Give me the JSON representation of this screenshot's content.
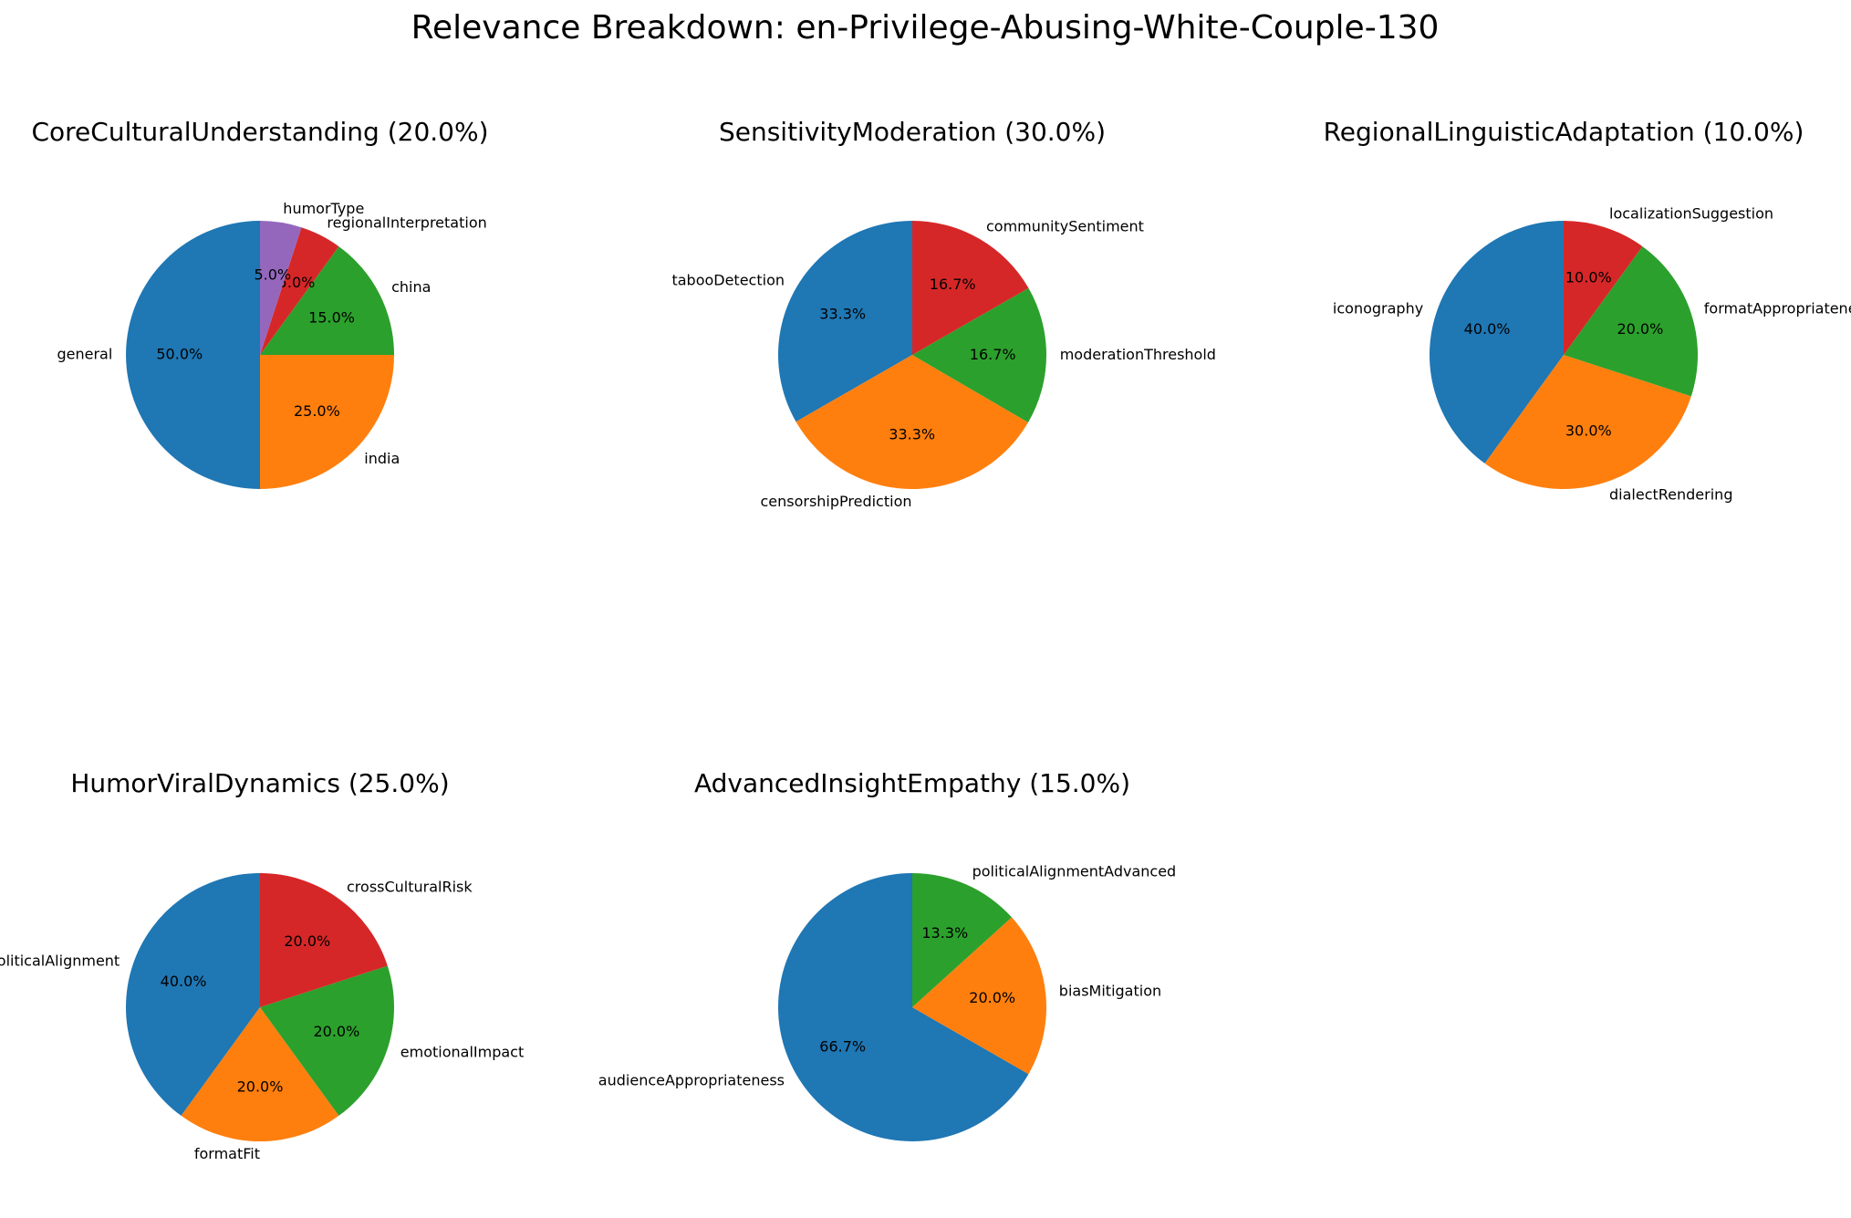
{
  "figure": {
    "title": "Relevance Breakdown: en-Privilege-Abusing-White-Couple-130"
  },
  "chart_data": [
    {
      "type": "pie",
      "title": "CoreCulturalUnderstanding (20.0%)",
      "legend": "none",
      "start_angle_deg": 90,
      "direction": "counterclockwise",
      "slices": [
        {
          "label": "general",
          "value": 50.0,
          "pct_label": "50.0%",
          "color": "#1f77b4"
        },
        {
          "label": "india",
          "value": 25.0,
          "pct_label": "25.0%",
          "color": "#ff7f0e"
        },
        {
          "label": "china",
          "value": 15.0,
          "pct_label": "15.0%",
          "color": "#2ca02c"
        },
        {
          "label": "regionalInterpretation",
          "value": 5.0,
          "pct_label": "5.0%",
          "color": "#d62728"
        },
        {
          "label": "humorType",
          "value": 5.0,
          "pct_label": "5.0%",
          "color": "#9467bd"
        }
      ]
    },
    {
      "type": "pie",
      "title": "SensitivityModeration (30.0%)",
      "legend": "none",
      "start_angle_deg": 90,
      "direction": "counterclockwise",
      "slices": [
        {
          "label": "tabooDetection",
          "value": 33.3,
          "pct_label": "33.3%",
          "color": "#1f77b4"
        },
        {
          "label": "censorshipPrediction",
          "value": 33.3,
          "pct_label": "33.3%",
          "color": "#ff7f0e"
        },
        {
          "label": "moderationThreshold",
          "value": 16.7,
          "pct_label": "16.7%",
          "color": "#2ca02c"
        },
        {
          "label": "communitySentiment",
          "value": 16.7,
          "pct_label": "16.7%",
          "color": "#d62728"
        }
      ]
    },
    {
      "type": "pie",
      "title": "RegionalLinguisticAdaptation (10.0%)",
      "legend": "none",
      "start_angle_deg": 90,
      "direction": "counterclockwise",
      "slices": [
        {
          "label": "iconography",
          "value": 40.0,
          "pct_label": "40.0%",
          "color": "#1f77b4"
        },
        {
          "label": "dialectRendering",
          "value": 30.0,
          "pct_label": "30.0%",
          "color": "#ff7f0e"
        },
        {
          "label": "formatAppropriateness",
          "value": 20.0,
          "pct_label": "20.0%",
          "color": "#2ca02c"
        },
        {
          "label": "localizationSuggestion",
          "value": 10.0,
          "pct_label": "10.0%",
          "color": "#d62728"
        }
      ]
    },
    {
      "type": "pie",
      "title": "HumorViralDynamics (25.0%)",
      "legend": "none",
      "start_angle_deg": 90,
      "direction": "counterclockwise",
      "slices": [
        {
          "label": "politicalAlignment",
          "value": 40.0,
          "pct_label": "40.0%",
          "color": "#1f77b4"
        },
        {
          "label": "formatFit",
          "value": 20.0,
          "pct_label": "20.0%",
          "color": "#ff7f0e"
        },
        {
          "label": "emotionalImpact",
          "value": 20.0,
          "pct_label": "20.0%",
          "color": "#2ca02c"
        },
        {
          "label": "crossCulturalRisk",
          "value": 20.0,
          "pct_label": "20.0%",
          "color": "#d62728"
        }
      ]
    },
    {
      "type": "pie",
      "title": "AdvancedInsightEmpathy (15.0%)",
      "legend": "none",
      "start_angle_deg": 90,
      "direction": "counterclockwise",
      "slices": [
        {
          "label": "audienceAppropriateness",
          "value": 66.7,
          "pct_label": "66.7%",
          "color": "#1f77b4"
        },
        {
          "label": "biasMitigation",
          "value": 20.0,
          "pct_label": "20.0%",
          "color": "#ff7f0e"
        },
        {
          "label": "politicalAlignmentAdvanced",
          "value": 13.3,
          "pct_label": "13.3%",
          "color": "#2ca02c"
        }
      ]
    }
  ]
}
